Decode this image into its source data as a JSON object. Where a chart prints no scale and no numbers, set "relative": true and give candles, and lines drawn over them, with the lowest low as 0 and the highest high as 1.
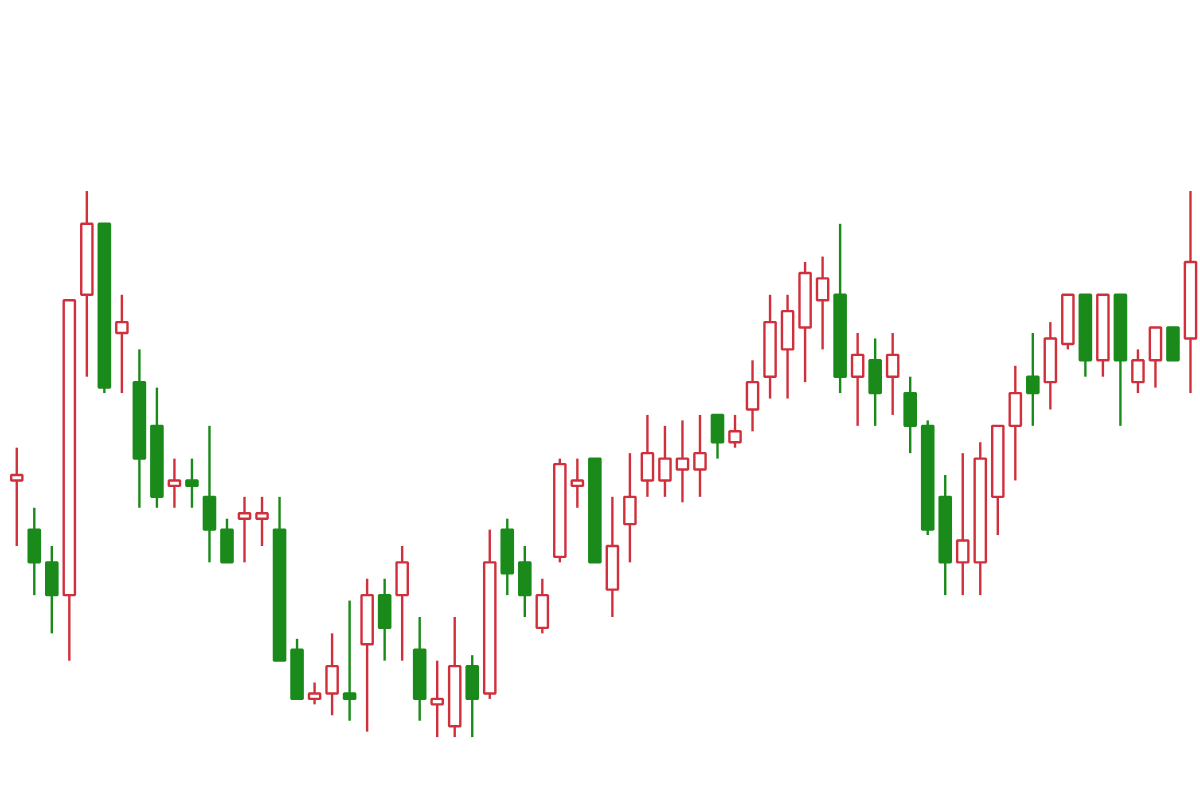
{
  "chart_data": {
    "type": "candlestick",
    "relative": true,
    "categories": [
      null,
      null,
      null,
      null,
      null,
      null,
      null,
      null,
      null,
      null,
      null,
      null,
      null,
      null,
      null,
      null,
      null,
      null,
      null,
      null,
      null,
      null,
      null,
      null,
      null,
      null,
      null,
      null,
      null,
      null,
      null,
      null,
      null,
      null,
      null,
      null,
      null,
      null,
      null,
      null,
      null,
      null,
      null,
      null,
      null,
      null,
      null,
      null,
      null,
      null,
      null,
      null,
      null,
      null,
      null,
      null,
      null,
      null,
      null,
      null,
      null,
      null,
      null,
      null,
      null,
      null,
      null,
      null
    ],
    "ohlc": [
      [
        0.47,
        0.53,
        0.35,
        0.48
      ],
      [
        0.38,
        0.42,
        0.26,
        0.32
      ],
      [
        0.32,
        0.35,
        0.19,
        0.26
      ],
      [
        0.26,
        0.8,
        0.14,
        0.8
      ],
      [
        0.81,
        1.0,
        0.66,
        0.94
      ],
      [
        0.94,
        0.94,
        0.63,
        0.64
      ],
      [
        0.74,
        0.81,
        0.63,
        0.76
      ],
      [
        0.65,
        0.71,
        0.42,
        0.51
      ],
      [
        0.57,
        0.64,
        0.42,
        0.44
      ],
      [
        0.46,
        0.51,
        0.42,
        0.47
      ],
      [
        0.47,
        0.51,
        0.42,
        0.46
      ],
      [
        0.44,
        0.57,
        0.32,
        0.38
      ],
      [
        0.38,
        0.4,
        0.32,
        0.32
      ],
      [
        0.4,
        0.44,
        0.32,
        0.41
      ],
      [
        0.4,
        0.44,
        0.35,
        0.41
      ],
      [
        0.38,
        0.44,
        0.14,
        0.14
      ],
      [
        0.16,
        0.18,
        0.07,
        0.07
      ],
      [
        0.07,
        0.1,
        0.06,
        0.08
      ],
      [
        0.08,
        0.19,
        0.04,
        0.13
      ],
      [
        0.08,
        0.25,
        0.03,
        0.07
      ],
      [
        0.17,
        0.29,
        0.01,
        0.26
      ],
      [
        0.26,
        0.29,
        0.14,
        0.2
      ],
      [
        0.26,
        0.35,
        0.14,
        0.32
      ],
      [
        0.16,
        0.22,
        0.03,
        0.07
      ],
      [
        0.06,
        0.14,
        0.0,
        0.07
      ],
      [
        0.02,
        0.22,
        0.0,
        0.13
      ],
      [
        0.13,
        0.15,
        0.0,
        0.07
      ],
      [
        0.08,
        0.38,
        0.07,
        0.32
      ],
      [
        0.38,
        0.4,
        0.26,
        0.3
      ],
      [
        0.32,
        0.35,
        0.22,
        0.26
      ],
      [
        0.2,
        0.29,
        0.19,
        0.26
      ],
      [
        0.33,
        0.51,
        0.32,
        0.5
      ],
      [
        0.46,
        0.51,
        0.42,
        0.47
      ],
      [
        0.51,
        0.51,
        0.32,
        0.32
      ],
      [
        0.27,
        0.44,
        0.22,
        0.35
      ],
      [
        0.39,
        0.52,
        0.32,
        0.44
      ],
      [
        0.47,
        0.59,
        0.44,
        0.52
      ],
      [
        0.47,
        0.57,
        0.44,
        0.51
      ],
      [
        0.49,
        0.58,
        0.43,
        0.51
      ],
      [
        0.49,
        0.59,
        0.44,
        0.52
      ],
      [
        0.59,
        0.59,
        0.51,
        0.54
      ],
      [
        0.54,
        0.59,
        0.53,
        0.56
      ],
      [
        0.6,
        0.69,
        0.56,
        0.65
      ],
      [
        0.66,
        0.81,
        0.62,
        0.76
      ],
      [
        0.71,
        0.81,
        0.62,
        0.78
      ],
      [
        0.75,
        0.87,
        0.65,
        0.85
      ],
      [
        0.8,
        0.88,
        0.71,
        0.84
      ],
      [
        0.81,
        0.94,
        0.63,
        0.66
      ],
      [
        0.66,
        0.74,
        0.57,
        0.7
      ],
      [
        0.69,
        0.73,
        0.57,
        0.63
      ],
      [
        0.66,
        0.74,
        0.59,
        0.7
      ],
      [
        0.63,
        0.66,
        0.52,
        0.57
      ],
      [
        0.57,
        0.58,
        0.37,
        0.38
      ],
      [
        0.44,
        0.48,
        0.26,
        0.32
      ],
      [
        0.32,
        0.52,
        0.26,
        0.36
      ],
      [
        0.32,
        0.54,
        0.26,
        0.51
      ],
      [
        0.44,
        0.57,
        0.37,
        0.57
      ],
      [
        0.57,
        0.68,
        0.47,
        0.63
      ],
      [
        0.66,
        0.74,
        0.57,
        0.63
      ],
      [
        0.65,
        0.76,
        0.6,
        0.73
      ],
      [
        0.72,
        0.81,
        0.71,
        0.81
      ],
      [
        0.81,
        0.81,
        0.66,
        0.69
      ],
      [
        0.69,
        0.81,
        0.66,
        0.81
      ],
      [
        0.81,
        0.81,
        0.57,
        0.69
      ],
      [
        0.65,
        0.71,
        0.63,
        0.69
      ],
      [
        0.69,
        0.75,
        0.64,
        0.75
      ],
      [
        0.75,
        0.75,
        0.69,
        0.69
      ],
      [
        0.73,
        1.0,
        0.63,
        0.87
      ]
    ],
    "colors": [
      "#d0303c",
      "#1a8a1a",
      "#1a8a1a",
      "#d0303c",
      "#d0303c",
      "#1a8a1a",
      "#d0303c",
      "#1a8a1a",
      "#1a8a1a",
      "#d0303c",
      "#1a8a1a",
      "#1a8a1a",
      "#1a8a1a",
      "#d0303c",
      "#d0303c",
      "#1a8a1a",
      "#1a8a1a",
      "#d0303c",
      "#d0303c",
      "#1a8a1a",
      "#d0303c",
      "#1a8a1a",
      "#d0303c",
      "#1a8a1a",
      "#d0303c",
      "#d0303c",
      "#1a8a1a",
      "#d0303c",
      "#1a8a1a",
      "#1a8a1a",
      "#d0303c",
      "#d0303c",
      "#d0303c",
      "#1a8a1a",
      "#d0303c",
      "#d0303c",
      "#d0303c",
      "#d0303c",
      "#d0303c",
      "#d0303c",
      "#1a8a1a",
      "#d0303c",
      "#d0303c",
      "#d0303c",
      "#d0303c",
      "#d0303c",
      "#d0303c",
      "#1a8a1a",
      "#d0303c",
      "#1a8a1a",
      "#d0303c",
      "#1a8a1a",
      "#1a8a1a",
      "#1a8a1a",
      "#d0303c",
      "#d0303c",
      "#d0303c",
      "#d0303c",
      "#1a8a1a",
      "#d0303c",
      "#d0303c",
      "#1a8a1a",
      "#d0303c",
      "#1a8a1a",
      "#d0303c",
      "#d0303c",
      "#1a8a1a",
      "#d0303c"
    ]
  }
}
